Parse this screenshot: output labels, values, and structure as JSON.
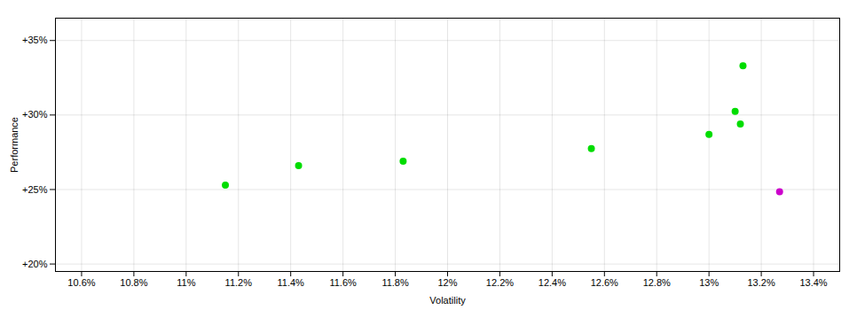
{
  "chart_data": {
    "type": "scatter",
    "xlabel": "Volatility",
    "ylabel": "Performance",
    "series": [
      {
        "color": "#00dd00",
        "x": [
          11.15,
          11.43,
          11.83,
          12.55,
          13.0,
          13.1,
          13.12,
          13.13
        ],
        "values": [
          25.3,
          26.6,
          26.9,
          27.75,
          28.7,
          30.25,
          29.4,
          33.3
        ]
      },
      {
        "color": "#cc00cc",
        "x": [
          13.27
        ],
        "values": [
          24.85
        ]
      }
    ],
    "xlim": [
      10.5,
      13.5
    ],
    "ylim": [
      19.5,
      36.5
    ],
    "xticks": [
      {
        "value": 10.6,
        "label": "10.6%"
      },
      {
        "value": 10.8,
        "label": "10.8%"
      },
      {
        "value": 11.0,
        "label": "11%"
      },
      {
        "value": 11.2,
        "label": "11.2%"
      },
      {
        "value": 11.4,
        "label": "11.4%"
      },
      {
        "value": 11.6,
        "label": "11.6%"
      },
      {
        "value": 11.8,
        "label": "11.8%"
      },
      {
        "value": 12.0,
        "label": "12%"
      },
      {
        "value": 12.2,
        "label": "12.2%"
      },
      {
        "value": 12.4,
        "label": "12.4%"
      },
      {
        "value": 12.6,
        "label": "12.6%"
      },
      {
        "value": 12.8,
        "label": "12.8%"
      },
      {
        "value": 13.0,
        "label": "13%"
      },
      {
        "value": 13.2,
        "label": "13.2%"
      },
      {
        "value": 13.4,
        "label": "13.4%"
      }
    ],
    "yticks": [
      {
        "value": 20,
        "label": "+20%"
      },
      {
        "value": 25,
        "label": "+25%"
      },
      {
        "value": 30,
        "label": "+30%"
      },
      {
        "value": 35,
        "label": "+35%"
      }
    ],
    "grid": true
  }
}
